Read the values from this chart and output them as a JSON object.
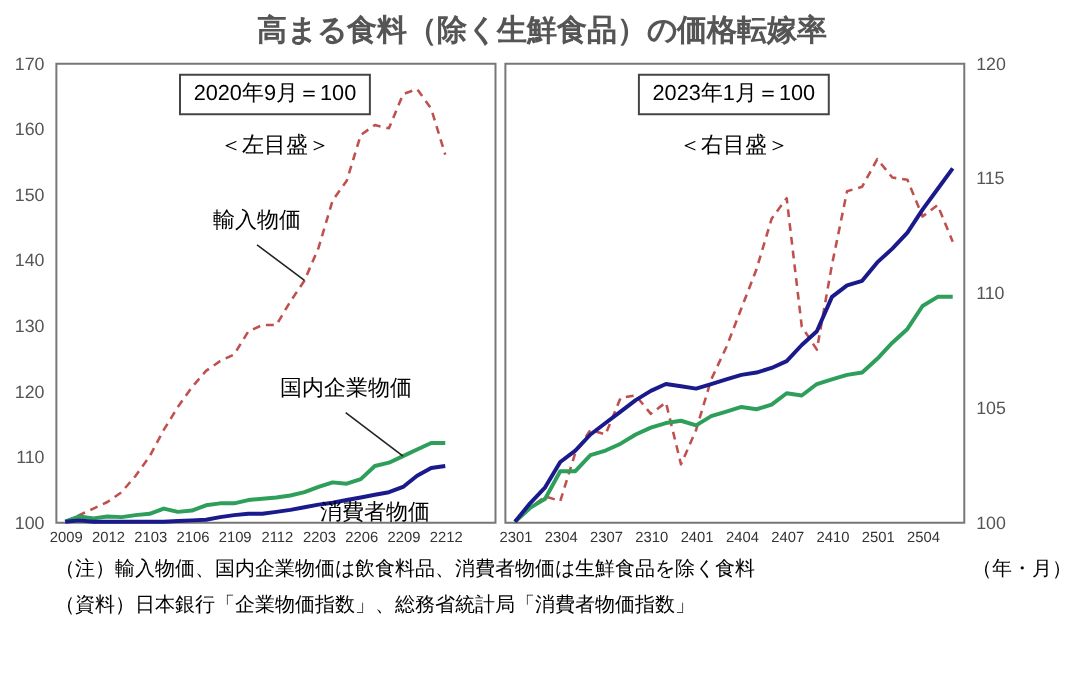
{
  "chart_data": [
    {
      "type": "line",
      "title": "高まる食料（除く生鮮食品）の価格転嫁率",
      "grid": false,
      "categories": [
        "2009",
        null,
        null,
        "2012",
        null,
        null,
        "2103",
        null,
        null,
        "2106",
        null,
        null,
        "2109",
        null,
        null,
        "2112",
        null,
        null,
        "2203",
        null,
        null,
        "2206",
        null,
        null,
        "2209",
        null,
        null,
        "2212"
      ],
      "ylim": [
        100,
        170
      ],
      "yticks": [
        100,
        110,
        120,
        130,
        140,
        150,
        160,
        170
      ],
      "series": [
        {
          "name": "輸入物価",
          "color": "#c0504d",
          "line_style": "dashed",
          "values": [
            100,
            101,
            102,
            103,
            104.5,
            107,
            110,
            114,
            117.5,
            120.5,
            123,
            124.5,
            125.5,
            129,
            130,
            130,
            133.6,
            136.8,
            141.8,
            149,
            152,
            159,
            160.5,
            160,
            165.2,
            166,
            163,
            156
          ]
        },
        {
          "name": "国内企業物価",
          "color": "#2e9e5b",
          "line_style": "solid",
          "values": [
            100,
            100.8,
            100.5,
            100.8,
            100.7,
            101,
            101.2,
            102,
            101.5,
            101.7,
            102.5,
            102.8,
            102.8,
            103.3,
            103.5,
            103.7,
            104,
            104.5,
            105.3,
            106,
            105.8,
            106.5,
            108.5,
            109,
            110,
            111,
            112,
            112
          ]
        },
        {
          "name": "消費者物価",
          "color": "#1a1a8c",
          "line_style": "solid",
          "values": [
            100,
            100.2,
            100,
            100,
            100,
            100,
            100,
            100,
            100.1,
            100.2,
            100.3,
            100.7,
            101,
            101.2,
            101.2,
            101.5,
            101.8,
            102.2,
            102.6,
            102.9,
            103.3,
            103.7,
            104.1,
            104.5,
            105.3,
            107,
            108.2,
            108.5
          ]
        }
      ],
      "annotations": [
        "2020年9月＝100",
        "＜左目盛＞",
        "（注）輸入物価、国内企業物価は飲食料品、消費者物価は生鮮食品を除く食料",
        "（資料）日本銀行「企業物価指数」、総務省統計局「消費者物価指数」"
      ]
    },
    {
      "type": "line",
      "grid": false,
      "xlabel": "（年・月）",
      "categories": [
        "2301",
        null,
        null,
        "2304",
        null,
        null,
        "2307",
        null,
        null,
        "2310",
        null,
        null,
        "2401",
        null,
        null,
        "2404",
        null,
        null,
        "2407",
        null,
        null,
        "2410",
        null,
        null,
        "2501",
        null,
        null,
        "2504",
        null,
        null
      ],
      "y2lim": [
        100,
        120
      ],
      "y2ticks": [
        100,
        105,
        110,
        115,
        120
      ],
      "series": [
        {
          "color": "#c0504d",
          "line_style": "dashed",
          "axis": "y2",
          "values": [
            100,
            100.6,
            101.1,
            100.9,
            103,
            104,
            103.8,
            105.4,
            105.5,
            104.7,
            105.2,
            102.5,
            104,
            106.2,
            107.6,
            109.3,
            111,
            113.2,
            114.1,
            108.5,
            107.5,
            111.2,
            114.4,
            114.6,
            115.8,
            115,
            114.9,
            113.3,
            113.8,
            112.2
          ]
        },
        {
          "color": "#2e9e5b",
          "line_style": "solid",
          "axis": "y2",
          "values": [
            100,
            100.6,
            101,
            102.2,
            102.2,
            102.9,
            103.1,
            103.4,
            103.8,
            104.1,
            104.3,
            104.4,
            104.2,
            104.6,
            104.8,
            105,
            104.9,
            105.1,
            105.6,
            105.5,
            106,
            106.2,
            106.4,
            106.5,
            107.1,
            107.8,
            108.4,
            109.4,
            109.8,
            109.8
          ]
        },
        {
          "color": "#1a1a8c",
          "line_style": "solid",
          "axis": "y2",
          "values": [
            100,
            100.8,
            101.5,
            102.6,
            103.1,
            103.8,
            104.3,
            104.8,
            105.3,
            105.7,
            106,
            105.9,
            105.8,
            106,
            106.2,
            106.4,
            106.5,
            106.7,
            107,
            107.7,
            108.3,
            109.8,
            110.3,
            110.5,
            111.3,
            111.9,
            112.6,
            113.6,
            114.5,
            115.4
          ]
        }
      ],
      "annotations": [
        "2023年1月＝100",
        "＜右目盛＞"
      ]
    }
  ]
}
